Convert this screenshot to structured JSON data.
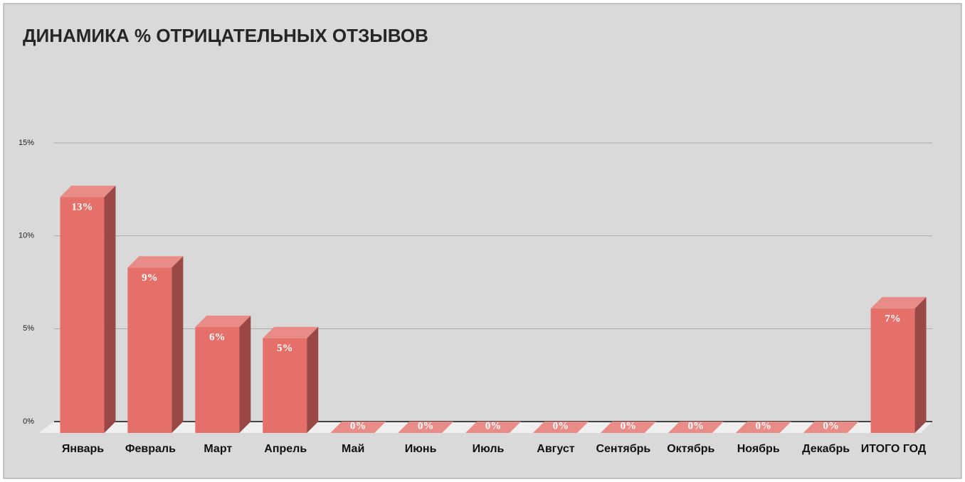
{
  "chart_data": {
    "type": "bar3d",
    "title": "ДИНАМИКА % ОТРИЦАТЕЛЬНЫХ ОТЗЫВОВ",
    "categories": [
      "Январь",
      "Февраль",
      "Март",
      "Апрель",
      "Май",
      "Июнь",
      "Июль",
      "Август",
      "Сентябрь",
      "Октябрь",
      "Ноябрь",
      "Декабрь",
      "ИТОГО ГОД"
    ],
    "values": [
      12.7,
      8.9,
      5.7,
      5.1,
      0,
      0,
      0,
      0,
      0,
      0,
      0,
      0,
      6.7
    ],
    "value_labels": [
      "13%",
      "9%",
      "6%",
      "5%",
      "0%",
      "0%",
      "0%",
      "0%",
      "0%",
      "0%",
      "0%",
      "0%",
      "7%"
    ],
    "color": "#e5706a",
    "ylim": [
      0,
      15
    ],
    "yticks": [
      {
        "value": 0,
        "label": "0%"
      },
      {
        "value": 5,
        "label": "5%"
      },
      {
        "value": 10,
        "label": "10%"
      },
      {
        "value": 15,
        "label": "15%"
      }
    ],
    "grid": true
  }
}
